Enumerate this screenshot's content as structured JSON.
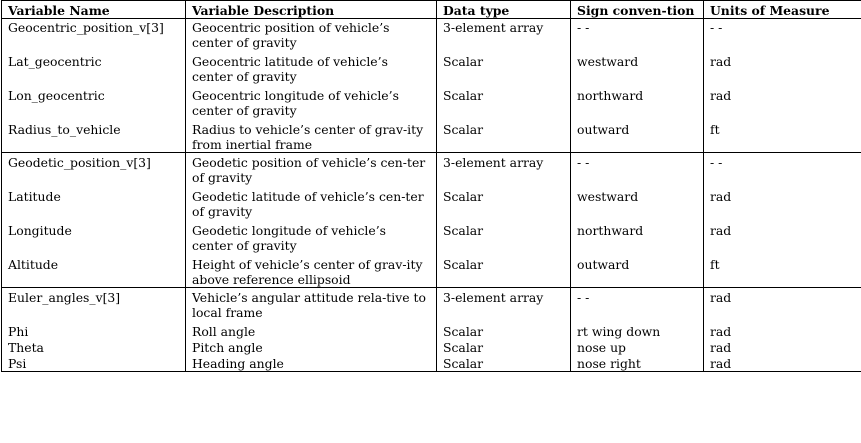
{
  "headers": {
    "name": "Variable Name",
    "desc": "Variable Description",
    "type": "Data type",
    "sign": "Sign conven-tion",
    "units": "Units of Measure"
  },
  "rows": [
    {
      "name": "Geocentric_position_v[3]",
      "desc": "Geocentric position of vehicle’s center of gravity",
      "type": "3-element array",
      "sign": "- -",
      "units": "- -"
    },
    {
      "name": "Lat_geocentric",
      "desc": "Geocentric latitude of vehicle’s center of gravity",
      "type": "Scalar",
      "sign": "westward",
      "units": "rad"
    },
    {
      "name": "Lon_geocentric",
      "desc": "Geocentric longitude of vehicle’s center of gravity",
      "type": "Scalar",
      "sign": "northward",
      "units": "rad"
    },
    {
      "name": "Radius_to_vehicle",
      "desc": "Radius to vehicle’s center of grav-ity from inertial frame",
      "type": "Scalar",
      "sign": "outward",
      "units": "ft"
    },
    {
      "name": "Geodetic_position_v[3]",
      "desc": "Geodetic position of vehicle’s cen-ter of gravity",
      "type": "3-element array",
      "sign": "- -",
      "units": "- -"
    },
    {
      "name": "Latitude",
      "desc": "Geodetic latitude of vehicle’s cen-ter of gravity",
      "type": "Scalar",
      "sign": "westward",
      "units": "rad"
    },
    {
      "name": "Longitude",
      "desc": "Geodetic longitude of vehicle’s center of gravity",
      "type": "Scalar",
      "sign": "northward",
      "units": "rad"
    },
    {
      "name": "Altitude",
      "desc": "Height of vehicle’s center of grav-ity above reference ellipsoid",
      "type": "Scalar",
      "sign": "outward",
      "units": "ft"
    },
    {
      "name": "Euler_angles_v[3]",
      "desc": "Vehicle’s angular attitude rela-tive to local frame",
      "type": "3-element array",
      "sign": "- -",
      "units": "rad"
    },
    {
      "name": "Phi",
      "desc": "Roll angle",
      "type": "Scalar",
      "sign": "rt wing down",
      "units": "rad"
    },
    {
      "name": "Theta",
      "desc": "Pitch angle",
      "type": "Scalar",
      "sign": "nose up",
      "units": "rad"
    },
    {
      "name": "Psi",
      "desc": "Heading angle",
      "type": "Scalar",
      "sign": "nose right",
      "units": "rad"
    }
  ]
}
